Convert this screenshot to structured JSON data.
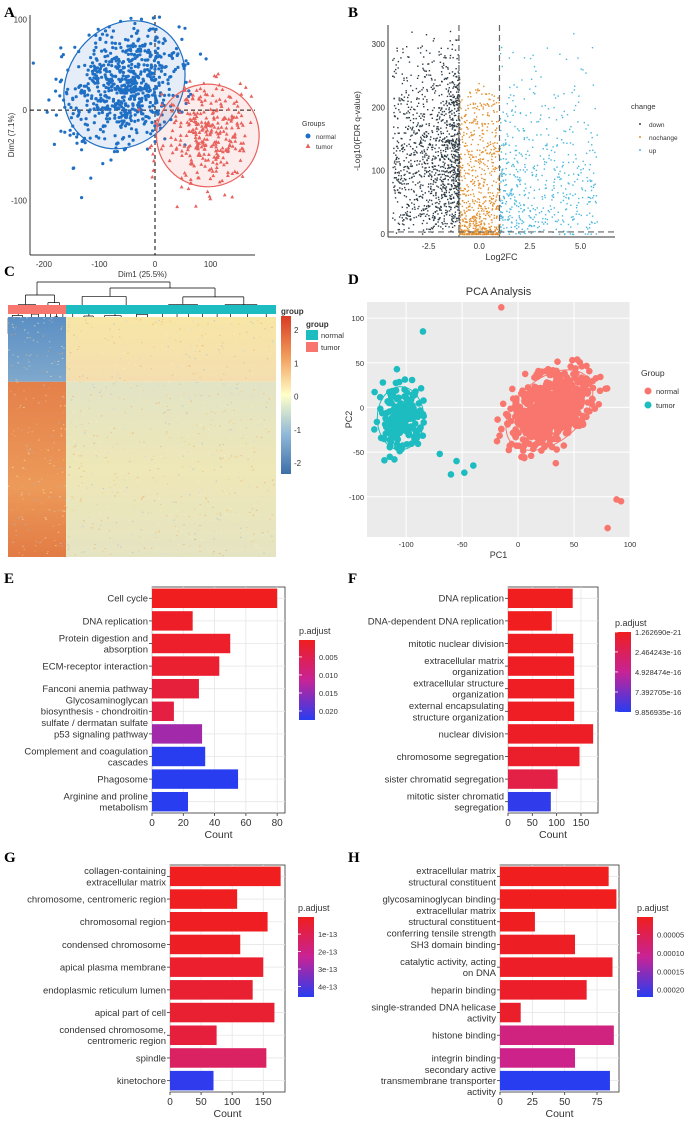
{
  "panels": {
    "A": "A",
    "B": "B",
    "C": "C",
    "D": "D",
    "E": "E",
    "F": "F",
    "G": "G",
    "H": "H"
  },
  "colors": {
    "normal_blue": "#1f6fc4",
    "tumor_red": "#e8615c",
    "teal": "#1cbcc0",
    "salmon": "#f8766d",
    "volcano_down": "#2f3c45",
    "volcano_nochange": "#e0902f",
    "volcano_up": "#4ab7dd"
  },
  "chart_data": [
    {
      "id": "A",
      "type": "scatter",
      "panel_label": "A",
      "xlabel": "Dim1 (25.5%)",
      "ylabel": "Dim2 (7.1%)",
      "xlim": [
        -225,
        180
      ],
      "ylim": [
        -160,
        105
      ],
      "xticks": [
        -200,
        -100,
        0,
        100
      ],
      "yticks": [
        -100,
        0,
        100
      ],
      "legend": {
        "title": "Groups",
        "items": [
          "normal",
          "tumor"
        ]
      },
      "series": [
        {
          "name": "normal",
          "center": [
            -55,
            28
          ],
          "spread": [
            55,
            30
          ],
          "rot": -55,
          "n": 700
        },
        {
          "name": "tumor",
          "center": [
            95,
            -28
          ],
          "spread": [
            42,
            27
          ],
          "rot": -60,
          "n": 320
        }
      ]
    },
    {
      "id": "B",
      "type": "scatter",
      "panel_label": "B",
      "xlabel": "Log2FC",
      "ylabel": "-Log10(FDR q-value)",
      "xlim": [
        -4.5,
        6.7
      ],
      "ylim": [
        -5,
        330
      ],
      "xticks": [
        -2.5,
        0.0,
        2.5,
        5.0
      ],
      "xticklabels": [
        "-2.5",
        "0.0",
        "2.5",
        "5.0"
      ],
      "yticks": [
        0,
        100,
        200,
        300
      ],
      "thresholds": {
        "vlines": [
          -1,
          1
        ],
        "hline": 3
      },
      "legend": {
        "title": "change",
        "items": [
          "down",
          "nochange",
          "up"
        ]
      }
    },
    {
      "id": "C",
      "type": "heatmap",
      "panel_label": "C",
      "legend": {
        "title": "group",
        "items": [
          "normal",
          "tumor"
        ],
        "scale": [
          -2,
          -1,
          0,
          1,
          2
        ]
      },
      "column_groups": [
        {
          "name": "tumor",
          "fraction": 0.22
        },
        {
          "name": "normal",
          "fraction": 0.78
        }
      ],
      "row_blocks": [
        {
          "name": "down_in_tumor",
          "fraction": 0.27
        },
        {
          "name": "up_in_tumor",
          "fraction": 0.73
        }
      ]
    },
    {
      "id": "D",
      "type": "scatter",
      "panel_label": "D",
      "title": "PCA Analysis",
      "xlabel": "PC1",
      "ylabel": "PC2",
      "xlim": [
        -135,
        100
      ],
      "ylim": [
        -145,
        118
      ],
      "xticks": [
        -100,
        -50,
        0,
        50,
        100
      ],
      "yticks": [
        -100,
        -50,
        0,
        50,
        100
      ],
      "legend": {
        "title": "Group",
        "items": [
          "normal",
          "tumor"
        ]
      },
      "series": [
        {
          "name": "normal",
          "center": [
            28,
            -3
          ],
          "spread": [
            28,
            22
          ],
          "rot": -40,
          "n": 650
        },
        {
          "name": "tumor",
          "center": [
            -105,
            -12
          ],
          "spread": [
            13,
            22
          ],
          "rot": 0,
          "n": 200
        }
      ]
    },
    {
      "id": "E",
      "type": "bar",
      "panel_label": "E",
      "xlabel": "Count",
      "xlim": [
        0,
        85
      ],
      "xticks": [
        0,
        20,
        40,
        60,
        80
      ],
      "categories": [
        [
          "Cell cycle"
        ],
        [
          "DNA replication"
        ],
        [
          "Protein digestion and",
          "absorption"
        ],
        [
          "ECM-receptor interaction"
        ],
        [
          "Fanconi anemia pathway"
        ],
        [
          "Glycosaminoglycan",
          "biosynthesis - chondroitin",
          "sulfate / dermatan sulfate"
        ],
        [
          "p53 signaling pathway"
        ],
        [
          "Complement and coagulation",
          "cascades"
        ],
        [
          "Phagosome"
        ],
        [
          "Arginine and proline",
          "metabolism"
        ]
      ],
      "values": [
        80,
        26,
        50,
        43,
        30,
        14,
        32,
        34,
        55,
        23
      ],
      "padjust": [
        0.0003,
        0.0012,
        0.0015,
        0.002,
        0.003,
        0.0035,
        0.014,
        0.0225,
        0.0225,
        0.0225
      ],
      "legend": {
        "title": "p.adjust",
        "labels": [
          "0.005",
          "0.010",
          "0.015",
          "0.020"
        ],
        "ticks": [
          0.005,
          0.01,
          0.015,
          0.02
        ],
        "range": [
          0.0003,
          0.0225
        ]
      }
    },
    {
      "id": "F",
      "type": "bar",
      "panel_label": "F",
      "xlabel": "Count",
      "xlim": [
        0,
        185
      ],
      "xticks": [
        0,
        50,
        100,
        150
      ],
      "categories": [
        [
          "DNA replication"
        ],
        [
          "DNA-dependent DNA replication"
        ],
        [
          "mitotic nuclear division"
        ],
        [
          "extracellular matrix",
          "organization"
        ],
        [
          "extracellular structure",
          "organization"
        ],
        [
          "external encapsulating",
          "structure organization"
        ],
        [
          "nuclear division"
        ],
        [
          "chromosome segregation"
        ],
        [
          "sister chromatid segregation"
        ],
        [
          "mitotic sister chromatid",
          "segregation"
        ]
      ],
      "values": [
        133,
        90,
        134,
        136,
        136,
        136,
        175,
        147,
        102,
        88
      ],
      "padjust": [
        0.05,
        0.05,
        0.2,
        0.25,
        0.25,
        0.25,
        0.35,
        0.6,
        1.6,
        9.6
      ],
      "legend": {
        "title": "p.adjust",
        "labels": [
          "1.262690e-21",
          "2.464243e-16",
          "4.928474e-16",
          "7.392705e-16",
          "9.856935e-16"
        ],
        "ticks": [
          0.0126,
          2.464,
          4.928,
          7.393,
          9.857
        ],
        "range": [
          0.0126,
          9.857
        ]
      }
    },
    {
      "id": "G",
      "type": "bar",
      "panel_label": "G",
      "xlabel": "Count",
      "xlim": [
        0,
        185
      ],
      "xticks": [
        0,
        50,
        100,
        150
      ],
      "categories": [
        [
          "collagen-containing",
          "extracellular matrix"
        ],
        [
          "chromosome, centromeric region"
        ],
        [
          "chromosomal region"
        ],
        [
          "condensed chromosome"
        ],
        [
          "apical plasma membrane"
        ],
        [
          "endoplasmic reticulum lumen"
        ],
        [
          "apical part of cell"
        ],
        [
          "condensed chromosome,",
          "centromeric region"
        ],
        [
          "spindle"
        ],
        [
          "kinetochore"
        ]
      ],
      "values": [
        178,
        108,
        157,
        113,
        150,
        133,
        168,
        75,
        155,
        70
      ],
      "padjust": [
        0.02,
        0.05,
        0.1,
        0.15,
        0.3,
        0.4,
        0.4,
        0.6,
        1.3,
        4.5
      ],
      "legend": {
        "title": "p.adjust",
        "labels": [
          "1e-13",
          "2e-13",
          "3e-13",
          "4e-13"
        ],
        "ticks": [
          1,
          2,
          3,
          4
        ],
        "range": [
          0.02,
          4.6
        ]
      }
    },
    {
      "id": "H",
      "type": "bar",
      "panel_label": "H",
      "xlabel": "Count",
      "xlim": [
        0,
        92
      ],
      "xticks": [
        0,
        25,
        50,
        75
      ],
      "categories": [
        [
          "extracellular matrix",
          "structural constituent"
        ],
        [
          "glycosaminoglycan binding"
        ],
        [
          "extracellular matrix",
          "structural constituent",
          "conferring tensile strength"
        ],
        [
          "SH3 domain binding"
        ],
        [
          "catalytic activity, acting",
          "on DNA"
        ],
        [
          "heparin binding"
        ],
        [
          "single-stranded DNA helicase",
          "activity"
        ],
        [
          "histone binding"
        ],
        [
          "integrin binding"
        ],
        [
          "secondary active",
          "transmembrane transporter",
          "activity"
        ]
      ],
      "values": [
        84,
        90,
        27,
        58,
        87,
        67,
        16,
        88,
        58,
        85
      ],
      "padjust": [
        2e-06,
        3e-06,
        5e-06,
        8e-06,
        1e-05,
        1.2e-05,
        1.5e-05,
        9e-05,
        0.0001,
        0.00022
      ],
      "legend": {
        "title": "p.adjust",
        "labels": [
          "0.00005",
          "0.00010",
          "0.00015",
          "0.00020"
        ],
        "ticks": [
          5e-05,
          0.0001,
          0.00015,
          0.0002
        ],
        "range": [
          2e-06,
          0.00022
        ]
      }
    }
  ]
}
